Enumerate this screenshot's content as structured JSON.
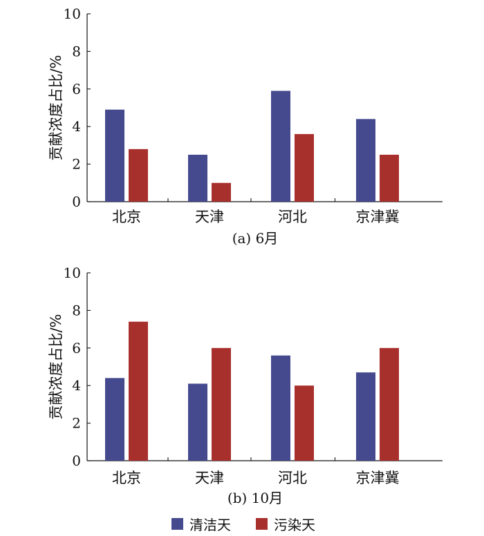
{
  "chart_data": [
    {
      "type": "bar",
      "caption": "(a) 6月",
      "ylabel": "贡献浓度占比/%",
      "ylim": [
        0,
        10
      ],
      "yticks": [
        0,
        2,
        4,
        6,
        8,
        10
      ],
      "categories": [
        "北京",
        "天津",
        "河北",
        "京津冀"
      ],
      "series": [
        {
          "name": "清洁天",
          "color": "#454a8e",
          "values": [
            4.9,
            2.5,
            5.9,
            4.4
          ]
        },
        {
          "name": "污染天",
          "color": "#a8302c",
          "values": [
            2.8,
            1.0,
            3.6,
            2.5
          ]
        }
      ]
    },
    {
      "type": "bar",
      "caption": "(b) 10月",
      "ylabel": "贡献浓度占比/%",
      "ylim": [
        0,
        10
      ],
      "yticks": [
        0,
        2,
        4,
        6,
        8,
        10
      ],
      "categories": [
        "北京",
        "天津",
        "河北",
        "京津冀"
      ],
      "series": [
        {
          "name": "清洁天",
          "color": "#454a8e",
          "values": [
            4.4,
            4.1,
            5.6,
            4.7
          ]
        },
        {
          "name": "污染天",
          "color": "#a8302c",
          "values": [
            7.4,
            6.0,
            4.0,
            6.0
          ]
        }
      ]
    }
  ],
  "legend": {
    "items": [
      {
        "label": "清洁天",
        "color": "#454a8e"
      },
      {
        "label": "污染天",
        "color": "#a8302c"
      }
    ]
  }
}
